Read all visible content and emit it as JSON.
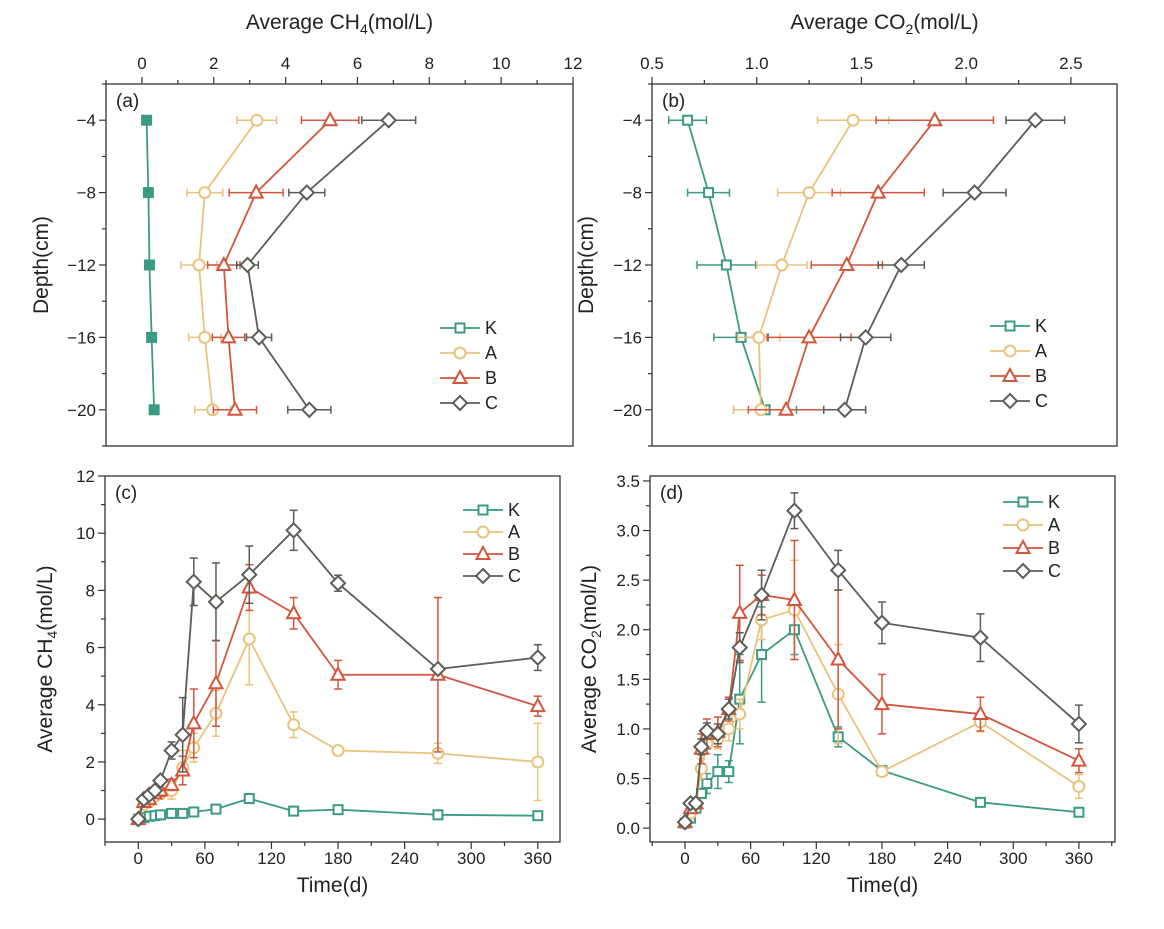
{
  "colors": {
    "K": "#3b9a84",
    "A": "#e9c27c",
    "B": "#d2553c",
    "C": "#5b5e57"
  },
  "chart_data": [
    {
      "id": "a",
      "panel_label": "(a)",
      "type": "line",
      "orientation": "horizontal-profile",
      "xlabel": {
        "text": "Average CH",
        "sub": "4",
        "rest": "(mol/L)"
      },
      "ylabel": "Depth(cm)",
      "xlim": [
        -1,
        12
      ],
      "ylim": [
        -22,
        -2
      ],
      "xticks": [
        0,
        2,
        4,
        6,
        8,
        10,
        12
      ],
      "xtick_labels": [
        "0",
        "2",
        "4",
        "6",
        "8",
        "10",
        "12"
      ],
      "yticks": [
        -4,
        -8,
        -12,
        -16,
        -20
      ],
      "ytick_labels": [
        "-4",
        "-8",
        "-12",
        "-16",
        "-20"
      ],
      "y": [
        -4,
        -8,
        -12,
        -16,
        -20
      ],
      "legend": "bottom-right",
      "series": [
        {
          "name": "K",
          "marker": "square-filled",
          "values": [
            0.13,
            0.18,
            0.21,
            0.27,
            0.34
          ],
          "err": [
            0,
            0,
            0,
            0,
            0
          ]
        },
        {
          "name": "A",
          "marker": "circle",
          "values": [
            3.2,
            1.75,
            1.59,
            1.75,
            1.97
          ],
          "err": [
            0.55,
            0.5,
            0.5,
            0.45,
            0.5
          ]
        },
        {
          "name": "B",
          "marker": "triangle",
          "values": [
            5.24,
            3.18,
            2.28,
            2.41,
            2.59
          ],
          "err": [
            0.8,
            0.75,
            0.45,
            0.45,
            0.6
          ]
        },
        {
          "name": "C",
          "marker": "diamond",
          "values": [
            6.87,
            4.59,
            2.94,
            3.26,
            4.66
          ],
          "err": [
            0.75,
            0.5,
            0.3,
            0.35,
            0.6
          ]
        }
      ]
    },
    {
      "id": "b",
      "panel_label": "(b)",
      "type": "line",
      "orientation": "horizontal-profile",
      "xlabel": {
        "text": "Average CO",
        "sub": "2",
        "rest": "(mol/L)"
      },
      "ylabel": "Depth(cm)",
      "xlim": [
        0.5,
        2.72
      ],
      "ylim": [
        -22,
        -2
      ],
      "xticks": [
        0.5,
        1.0,
        1.5,
        2.0,
        2.5
      ],
      "xtick_labels": [
        "0.5",
        "1.0",
        "1.5",
        "2.0",
        "2.5"
      ],
      "yticks": [
        -4,
        -8,
        -12,
        -16,
        -20
      ],
      "ytick_labels": [
        "-4",
        "-8",
        "-12",
        "-16",
        "-20"
      ],
      "y": [
        -4,
        -8,
        -12,
        -16,
        -20
      ],
      "legend": "bottom-right",
      "series": [
        {
          "name": "K",
          "marker": "square",
          "values": [
            0.67,
            0.77,
            0.855,
            0.925,
            1.04
          ],
          "err": [
            0.09,
            0.1,
            0.14,
            0.13,
            0.15
          ]
        },
        {
          "name": "A",
          "marker": "circle",
          "values": [
            1.46,
            1.25,
            1.12,
            1.01,
            1.02
          ],
          "err": [
            0.17,
            0.15,
            0.12,
            0.1,
            0.13
          ]
        },
        {
          "name": "B",
          "marker": "triangle",
          "values": [
            1.85,
            1.58,
            1.43,
            1.25,
            1.14
          ],
          "err": [
            0.28,
            0.22,
            0.17,
            0.2,
            0.18
          ]
        },
        {
          "name": "C",
          "marker": "diamond",
          "values": [
            2.33,
            2.04,
            1.69,
            1.52,
            1.42
          ],
          "err": [
            0.14,
            0.15,
            0.11,
            0.12,
            0.1
          ]
        }
      ]
    },
    {
      "id": "c",
      "panel_label": "(c)",
      "type": "line",
      "xlabel": {
        "text": "Time(d)",
        "sub": "",
        "rest": ""
      },
      "ylabel": {
        "text": "Average CH",
        "sub": "4",
        "rest": "(mol/L)"
      },
      "xlim": [
        -30,
        380
      ],
      "ylim": [
        -0.8,
        12
      ],
      "xticks": [
        0,
        60,
        120,
        180,
        240,
        300,
        360
      ],
      "xtick_labels": [
        "0",
        "60",
        "120",
        "180",
        "240",
        "300",
        "360"
      ],
      "yticks": [
        0,
        2,
        4,
        6,
        8,
        10,
        12
      ],
      "ytick_labels": [
        "0",
        "2",
        "4",
        "6",
        "8",
        "10",
        "12"
      ],
      "x": [
        0,
        5,
        10,
        15,
        20,
        30,
        40,
        50,
        70,
        100,
        140,
        180,
        270,
        360
      ],
      "legend": "top-right",
      "series": [
        {
          "name": "K",
          "marker": "square",
          "values": [
            0,
            0.05,
            0.1,
            0.12,
            0.15,
            0.2,
            0.2,
            0.25,
            0.35,
            0.72,
            0.28,
            0.33,
            0.15,
            0.12
          ],
          "err": [
            0,
            0,
            0,
            0,
            0,
            0,
            0,
            0,
            0.05,
            0.05,
            0.05,
            0.05,
            0.03,
            0.03
          ]
        },
        {
          "name": "A",
          "marker": "circle",
          "values": [
            0,
            0.5,
            0.6,
            0.8,
            0.9,
            1.0,
            1.8,
            2.5,
            3.7,
            6.3,
            3.3,
            2.4,
            2.3,
            2.0
          ],
          "err": [
            0,
            0.1,
            0.1,
            0.15,
            0.2,
            0.3,
            0.6,
            0.5,
            0.8,
            1.6,
            0.45,
            0.15,
            0.35,
            1.35
          ]
        },
        {
          "name": "B",
          "marker": "triangle",
          "values": [
            0,
            0.6,
            0.7,
            0.9,
            1.0,
            1.2,
            1.7,
            3.35,
            4.75,
            8.1,
            7.2,
            5.05,
            5.05,
            3.95
          ],
          "err": [
            0,
            0.1,
            0.1,
            0.15,
            0.2,
            0.2,
            0.5,
            1.2,
            1.5,
            0.8,
            0.55,
            0.5,
            2.7,
            0.35
          ]
        },
        {
          "name": "C",
          "marker": "diamond",
          "values": [
            0,
            0.7,
            0.85,
            1.0,
            1.35,
            2.4,
            2.95,
            8.3,
            7.6,
            8.55,
            10.1,
            8.25,
            5.25,
            5.65
          ],
          "err": [
            0,
            0.1,
            0.1,
            0.1,
            0.15,
            0.3,
            1.3,
            0.83,
            1.36,
            1.0,
            0.7,
            0.28,
            0.1,
            0.45
          ]
        }
      ]
    },
    {
      "id": "d",
      "panel_label": "(d)",
      "type": "line",
      "xlabel": {
        "text": "Time(d)",
        "sub": "",
        "rest": ""
      },
      "ylabel": {
        "text": "Average CO",
        "sub": "2",
        "rest": "(mol/L)"
      },
      "xlim": [
        -32,
        393
      ],
      "ylim": [
        -0.14,
        3.55
      ],
      "xticks": [
        0,
        60,
        120,
        180,
        240,
        300,
        360
      ],
      "xtick_labels": [
        "0",
        "60",
        "120",
        "180",
        "240",
        "300",
        "360"
      ],
      "yticks": [
        0,
        0.5,
        1.0,
        1.5,
        2.0,
        2.5,
        3.0,
        3.5
      ],
      "ytick_labels": [
        "0.0",
        "0.5",
        "1.0",
        "1.5",
        "2.0",
        "2.5",
        "3.0",
        "3.5"
      ],
      "x": [
        0,
        5,
        10,
        15,
        20,
        30,
        40,
        50,
        70,
        100,
        140,
        180,
        270,
        360
      ],
      "legend": "top-right",
      "series": [
        {
          "name": "K",
          "marker": "square",
          "values": [
            0.05,
            0.1,
            0.2,
            0.35,
            0.45,
            0.57,
            0.57,
            1.3,
            1.75,
            2.0,
            0.92,
            0.58,
            0.26,
            0.16
          ],
          "err": [
            0,
            0.02,
            0.03,
            0.05,
            0.1,
            0.17,
            0.11,
            0.45,
            0.48,
            0.25,
            0.1,
            0.05,
            0.02,
            0.02
          ]
        },
        {
          "name": "A",
          "marker": "circle",
          "values": [
            0.05,
            0.15,
            0.25,
            0.6,
            0.85,
            0.9,
            1.0,
            1.15,
            2.1,
            2.2,
            1.35,
            0.57,
            1.07,
            0.42
          ],
          "err": [
            0,
            0.03,
            0.05,
            0.1,
            0.1,
            0.1,
            0.12,
            0.15,
            0.2,
            0.5,
            0.5,
            0.05,
            0.1,
            0.12
          ]
        },
        {
          "name": "B",
          "marker": "triangle",
          "values": [
            0.06,
            0.2,
            0.25,
            0.8,
            0.95,
            0.97,
            1.2,
            2.17,
            2.35,
            2.3,
            1.7,
            1.25,
            1.15,
            0.68
          ],
          "err": [
            0,
            0.03,
            0.05,
            0.15,
            0.15,
            0.15,
            0.12,
            0.48,
            0.2,
            0.6,
            0.7,
            0.3,
            0.17,
            0.12
          ]
        },
        {
          "name": "C",
          "marker": "diamond",
          "values": [
            0.06,
            0.25,
            0.25,
            0.82,
            0.98,
            0.95,
            1.2,
            1.82,
            2.35,
            3.2,
            2.6,
            2.07,
            1.92,
            1.05
          ],
          "err": [
            0,
            0.03,
            0.03,
            0.08,
            0.08,
            0.1,
            0.1,
            0.15,
            0.25,
            0.18,
            0.2,
            0.21,
            0.24,
            0.19
          ]
        }
      ]
    }
  ]
}
